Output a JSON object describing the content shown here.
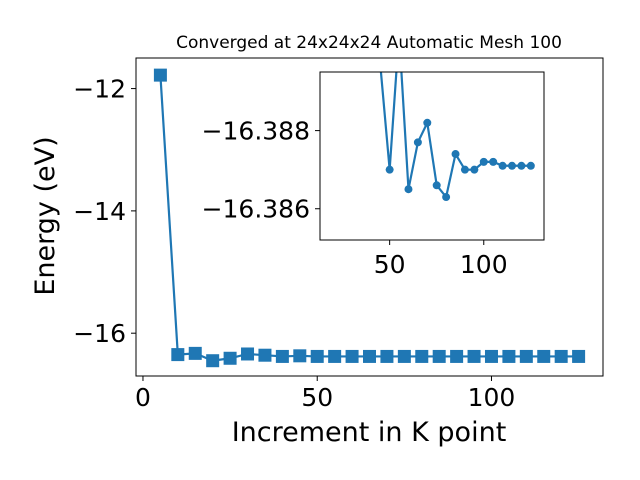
{
  "chart_data": [
    {
      "type": "line",
      "title": "Converged at 24x24x24 Automatic Mesh 100",
      "xlabel": "Increment in K point",
      "ylabel": "Energy (eV)",
      "xlim": [
        -2,
        132
      ],
      "ylim": [
        -16.7,
        -11.5
      ],
      "xticks": [
        0,
        50,
        100
      ],
      "xtick_labels": [
        "0",
        "50",
        "100"
      ],
      "yticks": [
        -12,
        -14,
        -16
      ],
      "ytick_labels": [
        "−12",
        "−14",
        "−16"
      ],
      "marker": "square",
      "color": "#1f77b4",
      "grid": false,
      "x": [
        5,
        10,
        15,
        20,
        25,
        30,
        35,
        40,
        45,
        50,
        55,
        60,
        65,
        70,
        75,
        80,
        85,
        90,
        95,
        100,
        105,
        110,
        115,
        120,
        125
      ],
      "y": [
        -11.78,
        -16.35,
        -16.33,
        -16.45,
        -16.41,
        -16.34,
        -16.36,
        -16.38,
        -16.37,
        -16.38,
        -16.38,
        -16.38,
        -16.38,
        -16.38,
        -16.38,
        -16.38,
        -16.38,
        -16.38,
        -16.38,
        -16.38,
        -16.38,
        -16.38,
        -16.38,
        -16.38,
        -16.38
      ]
    },
    {
      "type": "line",
      "title": "",
      "xlim": [
        13,
        132
      ],
      "ylim": [
        -16.3852,
        -16.3895
      ],
      "xticks": [
        50,
        100
      ],
      "xtick_labels": [
        "50",
        "100"
      ],
      "yticks": [
        -16.388,
        -16.386
      ],
      "ytick_labels": [
        "−16.388",
        "−16.386"
      ],
      "marker": "circle",
      "color": "#1f77b4",
      "grid": false,
      "x": [
        45,
        50,
        55,
        60,
        65,
        70,
        75,
        80,
        85,
        90,
        95,
        100,
        105,
        110,
        115,
        120,
        125
      ],
      "y": [
        -16.3897,
        -16.387,
        -16.3905,
        -16.3865,
        -16.3877,
        -16.3882,
        -16.3866,
        -16.3863,
        -16.3874,
        -16.387,
        -16.387,
        -16.3872,
        -16.3872,
        -16.3871,
        -16.3871,
        -16.3871,
        -16.3871
      ]
    }
  ]
}
